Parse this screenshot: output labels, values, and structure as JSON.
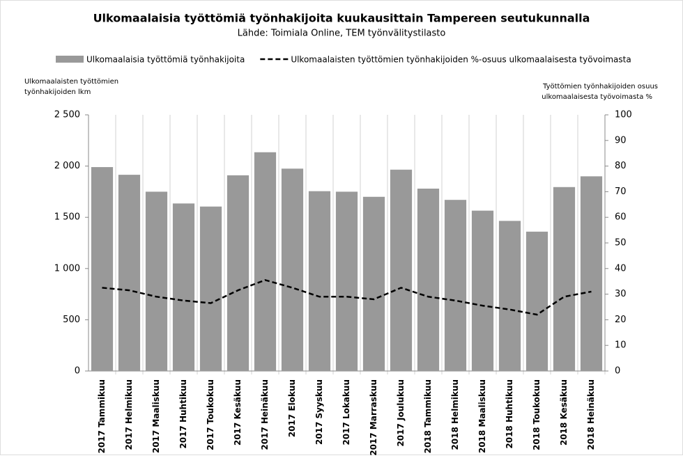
{
  "chart_data": {
    "type": "bar",
    "title": "Ulkomaalaisia työttömiä työnhakijoita kuukausittain Tampereen seutukunnalla",
    "subtitle": "Lähde: Toimiala Online, TEM työnvälitystilasto",
    "y_label": [
      "Ulkomaalaisten työttömien",
      "työnhakijoiden lkm"
    ],
    "y2_label": [
      "Työttömien työnhakijoiden osuus",
      "ulkomaalaisesta työvoimasta %"
    ],
    "categories": [
      "2017 Tammikuu",
      "2017 Helmikuu",
      "2017 Maaliskuu",
      "2017 Huhtikuu",
      "2017 Toukokuu",
      "2017 Kesäkuu",
      "2017 Heinäkuu",
      "2017 Elokuu",
      "2017 Syyskuu",
      "2017 Lokakuu",
      "2017 Marraskuu",
      "2017 Joulukuu",
      "2018 Tammikuu",
      "2018 Helmikuu",
      "2018 Maaliskuu",
      "2018 Huhtikuu",
      "2018 Toukokuu",
      "2018 Kesäkuu",
      "2018 Heinäkuu"
    ],
    "series": [
      {
        "name": "Ulkomaalaisia työttömiä työnhakijoita",
        "color": "#999999",
        "type": "bar",
        "values": [
          1990,
          1915,
          1750,
          1635,
          1605,
          1910,
          2135,
          1975,
          1755,
          1750,
          1700,
          1965,
          1780,
          1670,
          1565,
          1465,
          1360,
          1795,
          1900
        ]
      },
      {
        "name": "Ulkomaalaisten työttömien työnhakijoiden %-osuus ulkomaalaisesta työvoimasta",
        "color": "#000000",
        "type": "line",
        "dashed": true,
        "axis": "y2",
        "values": [
          32.5,
          31.5,
          29,
          27.5,
          26.5,
          31.5,
          35.5,
          32.5,
          29,
          29,
          28,
          32.5,
          29,
          27.5,
          25.5,
          24,
          22,
          29,
          31
        ]
      }
    ],
    "ylim": [
      0,
      2500
    ],
    "yticks": [
      0,
      500,
      {
        "value": 1000,
        "label": "1 000"
      },
      {
        "value": 1500,
        "label": "1 500"
      },
      {
        "value": 2000,
        "label": "2 000"
      },
      {
        "value": 2500,
        "label": "2 500"
      }
    ],
    "y2lim": [
      0,
      100
    ],
    "y2ticks": [
      0,
      10,
      20,
      30,
      40,
      50,
      60,
      70,
      80,
      90,
      100
    ],
    "grid": "vertical",
    "legend": "top"
  }
}
